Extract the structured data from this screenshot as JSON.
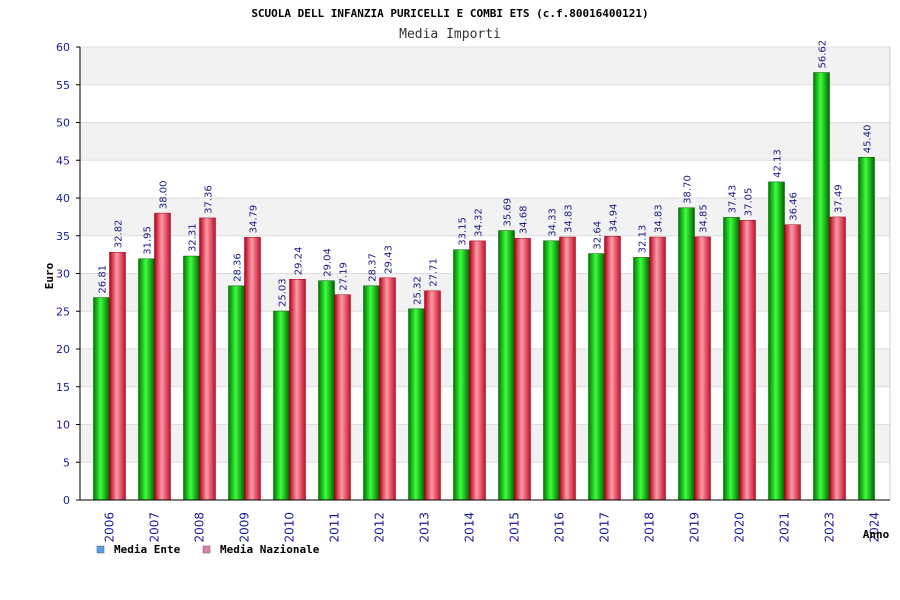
{
  "chart_data": {
    "type": "bar",
    "title": "SCUOLA DELL INFANZIA PURICELLI E COMBI ETS (c.f.80016400121)",
    "subtitle": "Media Importi",
    "xlabel": "Anno",
    "ylabel": "Euro",
    "ylim": [
      0,
      60
    ],
    "yticks": [
      0,
      5,
      10,
      15,
      20,
      25,
      30,
      35,
      40,
      45,
      50,
      55,
      60
    ],
    "categories": [
      "2006",
      "2007",
      "2008",
      "2009",
      "2010",
      "2011",
      "2012",
      "2013",
      "2014",
      "2015",
      "2016",
      "2017",
      "2018",
      "2019",
      "2020",
      "2021",
      "2023",
      "2024"
    ],
    "series": [
      {
        "name": "Media Ente",
        "color": "#00c000",
        "values": [
          26.81,
          31.95,
          32.31,
          28.36,
          25.03,
          29.04,
          28.37,
          25.32,
          33.15,
          35.69,
          34.33,
          32.64,
          32.13,
          38.7,
          37.43,
          42.13,
          56.62,
          45.4
        ],
        "labels": [
          "26.81",
          "31.95",
          "32.31",
          "28.36",
          "25.03",
          "29.04",
          "28.37",
          "25.32",
          "33.15",
          "35.69",
          "34.33",
          "32.64",
          "32.13",
          "38.70",
          "37.43",
          "42.13",
          "56.62",
          "45.40"
        ]
      },
      {
        "name": "Media Nazionale",
        "color": "#e0203a",
        "values": [
          32.82,
          38.0,
          37.36,
          34.79,
          29.24,
          27.19,
          29.43,
          27.71,
          34.32,
          34.68,
          34.83,
          34.94,
          34.83,
          34.85,
          37.05,
          36.46,
          37.49,
          null
        ],
        "labels": [
          "32.82",
          "38.00",
          "37.36",
          "34.79",
          "29.24",
          "27.19",
          "29.43",
          "27.71",
          "34.32",
          "34.68",
          "34.83",
          "34.94",
          "34.83",
          "34.85",
          "37.05",
          "36.46",
          "37.49",
          null
        ]
      }
    ],
    "legend": [
      {
        "label": "Media Ente",
        "color": "#5aa0e8"
      },
      {
        "label": "Media Nazionale",
        "color": "#e080b0"
      }
    ],
    "legend_position": "bottom-left",
    "grid": true
  }
}
